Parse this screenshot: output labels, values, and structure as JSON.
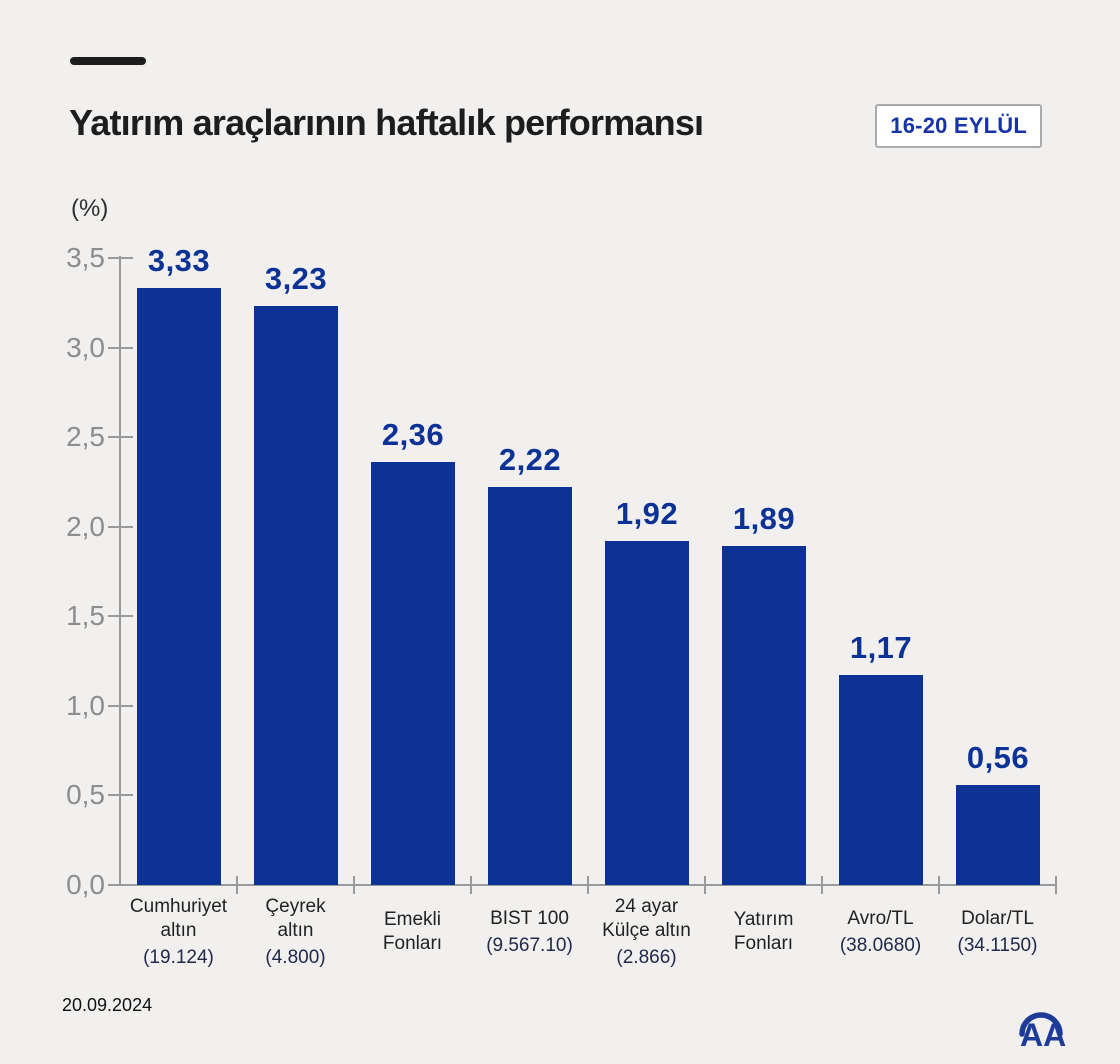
{
  "header": {
    "title": "Yatırım araçlarının haftalık performansı",
    "badge": "16-20 EYLÜL"
  },
  "footer": {
    "date": "20.09.2024",
    "logo_text": "AA"
  },
  "colors": {
    "background": "#f1f0ee",
    "bar": "#0c3295",
    "value_label": "#0c3295",
    "badge_text": "#1733a8",
    "category_detail": "#20294a",
    "axis": "#9a9a9a",
    "tick_label": "#8d8d8d",
    "title_text": "#1d1d1d",
    "logo_blue": "#1e3b9a"
  },
  "chart_data": {
    "type": "bar",
    "title": "Yatırım araçlarının haftalık performansı",
    "period": "16-20 EYLÜL",
    "xlabel": "",
    "ylabel": "(%)",
    "ylim": [
      0,
      3.5
    ],
    "grid": false,
    "legend": "none",
    "yticks": [
      {
        "v": 0.0,
        "label": "0,0"
      },
      {
        "v": 0.5,
        "label": "0,5"
      },
      {
        "v": 1.0,
        "label": "1,0"
      },
      {
        "v": 1.5,
        "label": "1,5"
      },
      {
        "v": 2.0,
        "label": "2,0"
      },
      {
        "v": 2.5,
        "label": "2,5"
      },
      {
        "v": 3.0,
        "label": "3,0"
      },
      {
        "v": 3.5,
        "label": "3,5"
      }
    ],
    "bars": [
      {
        "lines": [
          "Cumhuriyet",
          "altın"
        ],
        "detail": "(19.124)",
        "value": 3.33,
        "value_label": "3,33"
      },
      {
        "lines": [
          "Çeyrek",
          "altın"
        ],
        "detail": "(4.800)",
        "value": 3.23,
        "value_label": "3,23"
      },
      {
        "lines": [
          "Emekli",
          "Fonları"
        ],
        "detail": "",
        "value": 2.36,
        "value_label": "2,36"
      },
      {
        "lines": [
          "BIST 100"
        ],
        "detail": "(9.567.10)",
        "value": 2.22,
        "value_label": "2,22"
      },
      {
        "lines": [
          "24 ayar",
          "Külçe altın"
        ],
        "detail": "(2.866)",
        "value": 1.92,
        "value_label": "1,92"
      },
      {
        "lines": [
          "Yatırım",
          "Fonları"
        ],
        "detail": "",
        "value": 1.89,
        "value_label": "1,89"
      },
      {
        "lines": [
          "Avro/TL"
        ],
        "detail": "(38.0680)",
        "value": 1.17,
        "value_label": "1,17"
      },
      {
        "lines": [
          "Dolar/TL"
        ],
        "detail": "(34.1150)",
        "value": 0.56,
        "value_label": "0,56"
      }
    ]
  }
}
